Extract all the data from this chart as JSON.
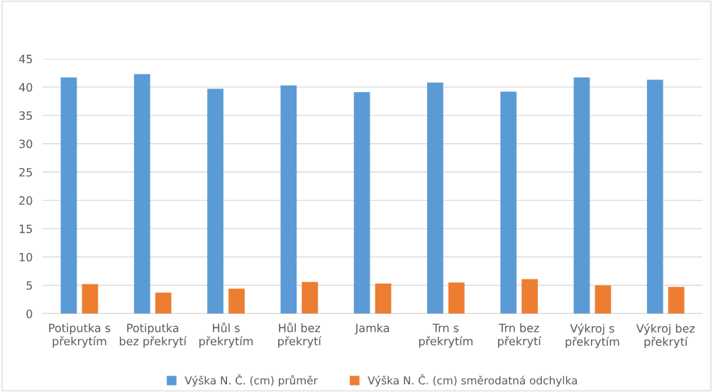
{
  "chart_data": {
    "type": "bar",
    "categories": [
      "Potiputka s\npřekrytím",
      "Potiputka\nbez překrytí",
      "Hůl s\npřekrytím",
      "Hůl bez\npřekrytí",
      "Jamka",
      "Trn s\npřekrytím",
      "Trn bez\npřekrytí",
      "Výkroj s\npřekrytím",
      "Výkroj bez\npřekrytí"
    ],
    "series": [
      {
        "name": "Výška N. Č. (cm) průměr",
        "color": "#5b9bd5",
        "values": [
          41.7,
          42.3,
          39.7,
          40.3,
          39.1,
          40.8,
          39.2,
          41.7,
          41.3
        ]
      },
      {
        "name": "Výška N. Č. (cm) směrodatná odchylka",
        "color": "#ed7d31",
        "values": [
          5.2,
          3.7,
          4.4,
          5.6,
          5.3,
          5.5,
          6.1,
          5.0,
          4.7
        ]
      }
    ],
    "ylim": [
      0,
      45
    ],
    "yticks": [
      0,
      5,
      10,
      15,
      20,
      25,
      30,
      35,
      40,
      45
    ],
    "grid": "y",
    "legend": "bottom"
  }
}
